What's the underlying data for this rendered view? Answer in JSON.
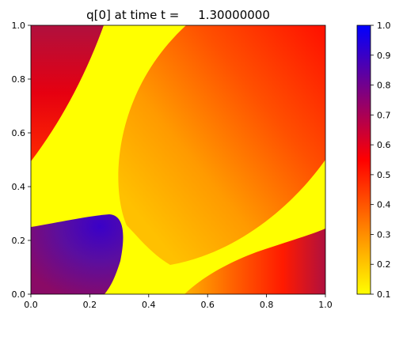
{
  "chart_data": {
    "type": "heatmap",
    "title": "q[0] at time t =     1.30000000",
    "xlabel": "",
    "ylabel": "",
    "xlim": [
      0.0,
      1.0
    ],
    "ylim": [
      0.0,
      1.0
    ],
    "x_ticks": [
      "0.0",
      "0.2",
      "0.4",
      "0.6",
      "0.8",
      "1.0"
    ],
    "y_ticks": [
      "0.0",
      "0.2",
      "0.4",
      "0.6",
      "0.8",
      "1.0"
    ],
    "grid": false,
    "colorbar": {
      "range": [
        0.1,
        1.0
      ],
      "ticks": [
        "0.1",
        "0.2",
        "0.3",
        "0.4",
        "0.5",
        "0.6",
        "0.7",
        "0.8",
        "0.9",
        "1.0"
      ],
      "colormap_stops": [
        {
          "value": 0.1,
          "color": "#ffff00"
        },
        {
          "value": 0.55,
          "color": "#ff0000"
        },
        {
          "value": 1.0,
          "color": "#0000ff"
        }
      ]
    },
    "regions": [
      {
        "name": "upper-left-band",
        "approx_range": [
          0.6,
          0.8
        ]
      },
      {
        "name": "main-diagonal-gradient",
        "approx_range": [
          0.2,
          0.6
        ]
      },
      {
        "name": "lower-left-blob",
        "approx_range": [
          0.65,
          0.95
        ]
      },
      {
        "name": "lower-right-band",
        "approx_range": [
          0.4,
          0.7
        ]
      },
      {
        "name": "yellow-fronts",
        "approx_range": [
          0.1,
          0.12
        ]
      }
    ]
  }
}
